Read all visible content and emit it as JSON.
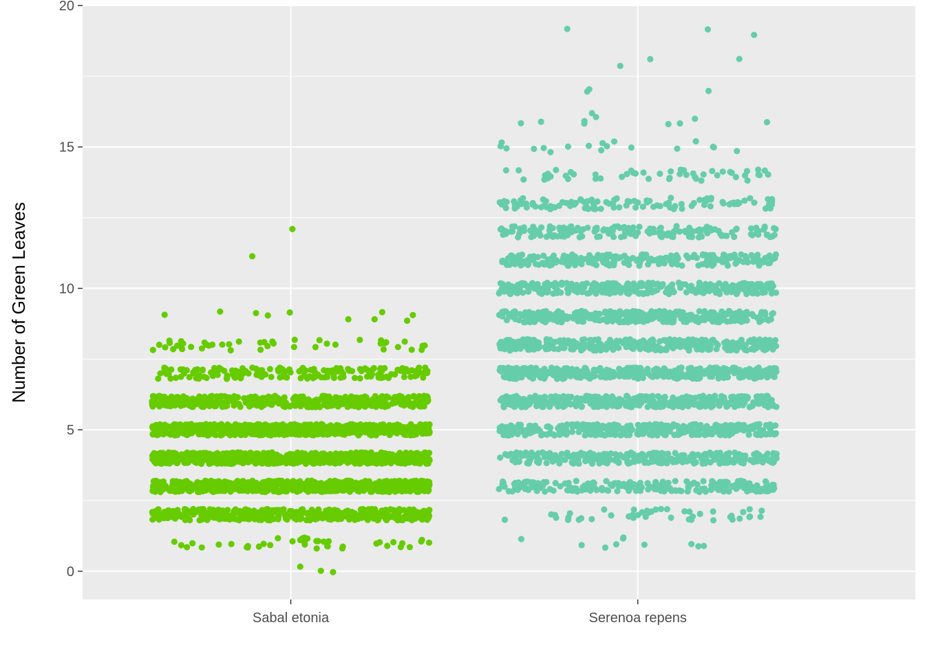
{
  "chart_data": {
    "type": "scatter",
    "subtype": "jitter-strip",
    "title": "",
    "xlabel": "",
    "ylabel": "Number of Green Leaves",
    "ylim": [
      -1,
      20
    ],
    "y_ticks": [
      0,
      5,
      10,
      15,
      20
    ],
    "grid": true,
    "legend": "none",
    "background": "#ebebeb",
    "categories": [
      "Sabal etonia",
      "Serenoa repens"
    ],
    "series": [
      {
        "category": "Sabal etonia",
        "color": "#66cc00",
        "value_counts": {
          "0": 3,
          "1": 40,
          "2": 420,
          "3": 700,
          "4": 760,
          "5": 660,
          "6": 450,
          "7": 170,
          "8": 45,
          "9": 10,
          "11": 1,
          "12": 1
        }
      },
      {
        "category": "Serenoa repens",
        "color": "#66cdaa",
        "value_counts": {
          "1": 10,
          "2": 45,
          "3": 210,
          "4": 300,
          "5": 380,
          "6": 420,
          "7": 400,
          "8": 360,
          "9": 330,
          "10": 310,
          "11": 230,
          "12": 170,
          "13": 110,
          "14": 50,
          "15": 18,
          "16": 10,
          "17": 3,
          "18": 3,
          "19": 3
        }
      }
    ]
  }
}
